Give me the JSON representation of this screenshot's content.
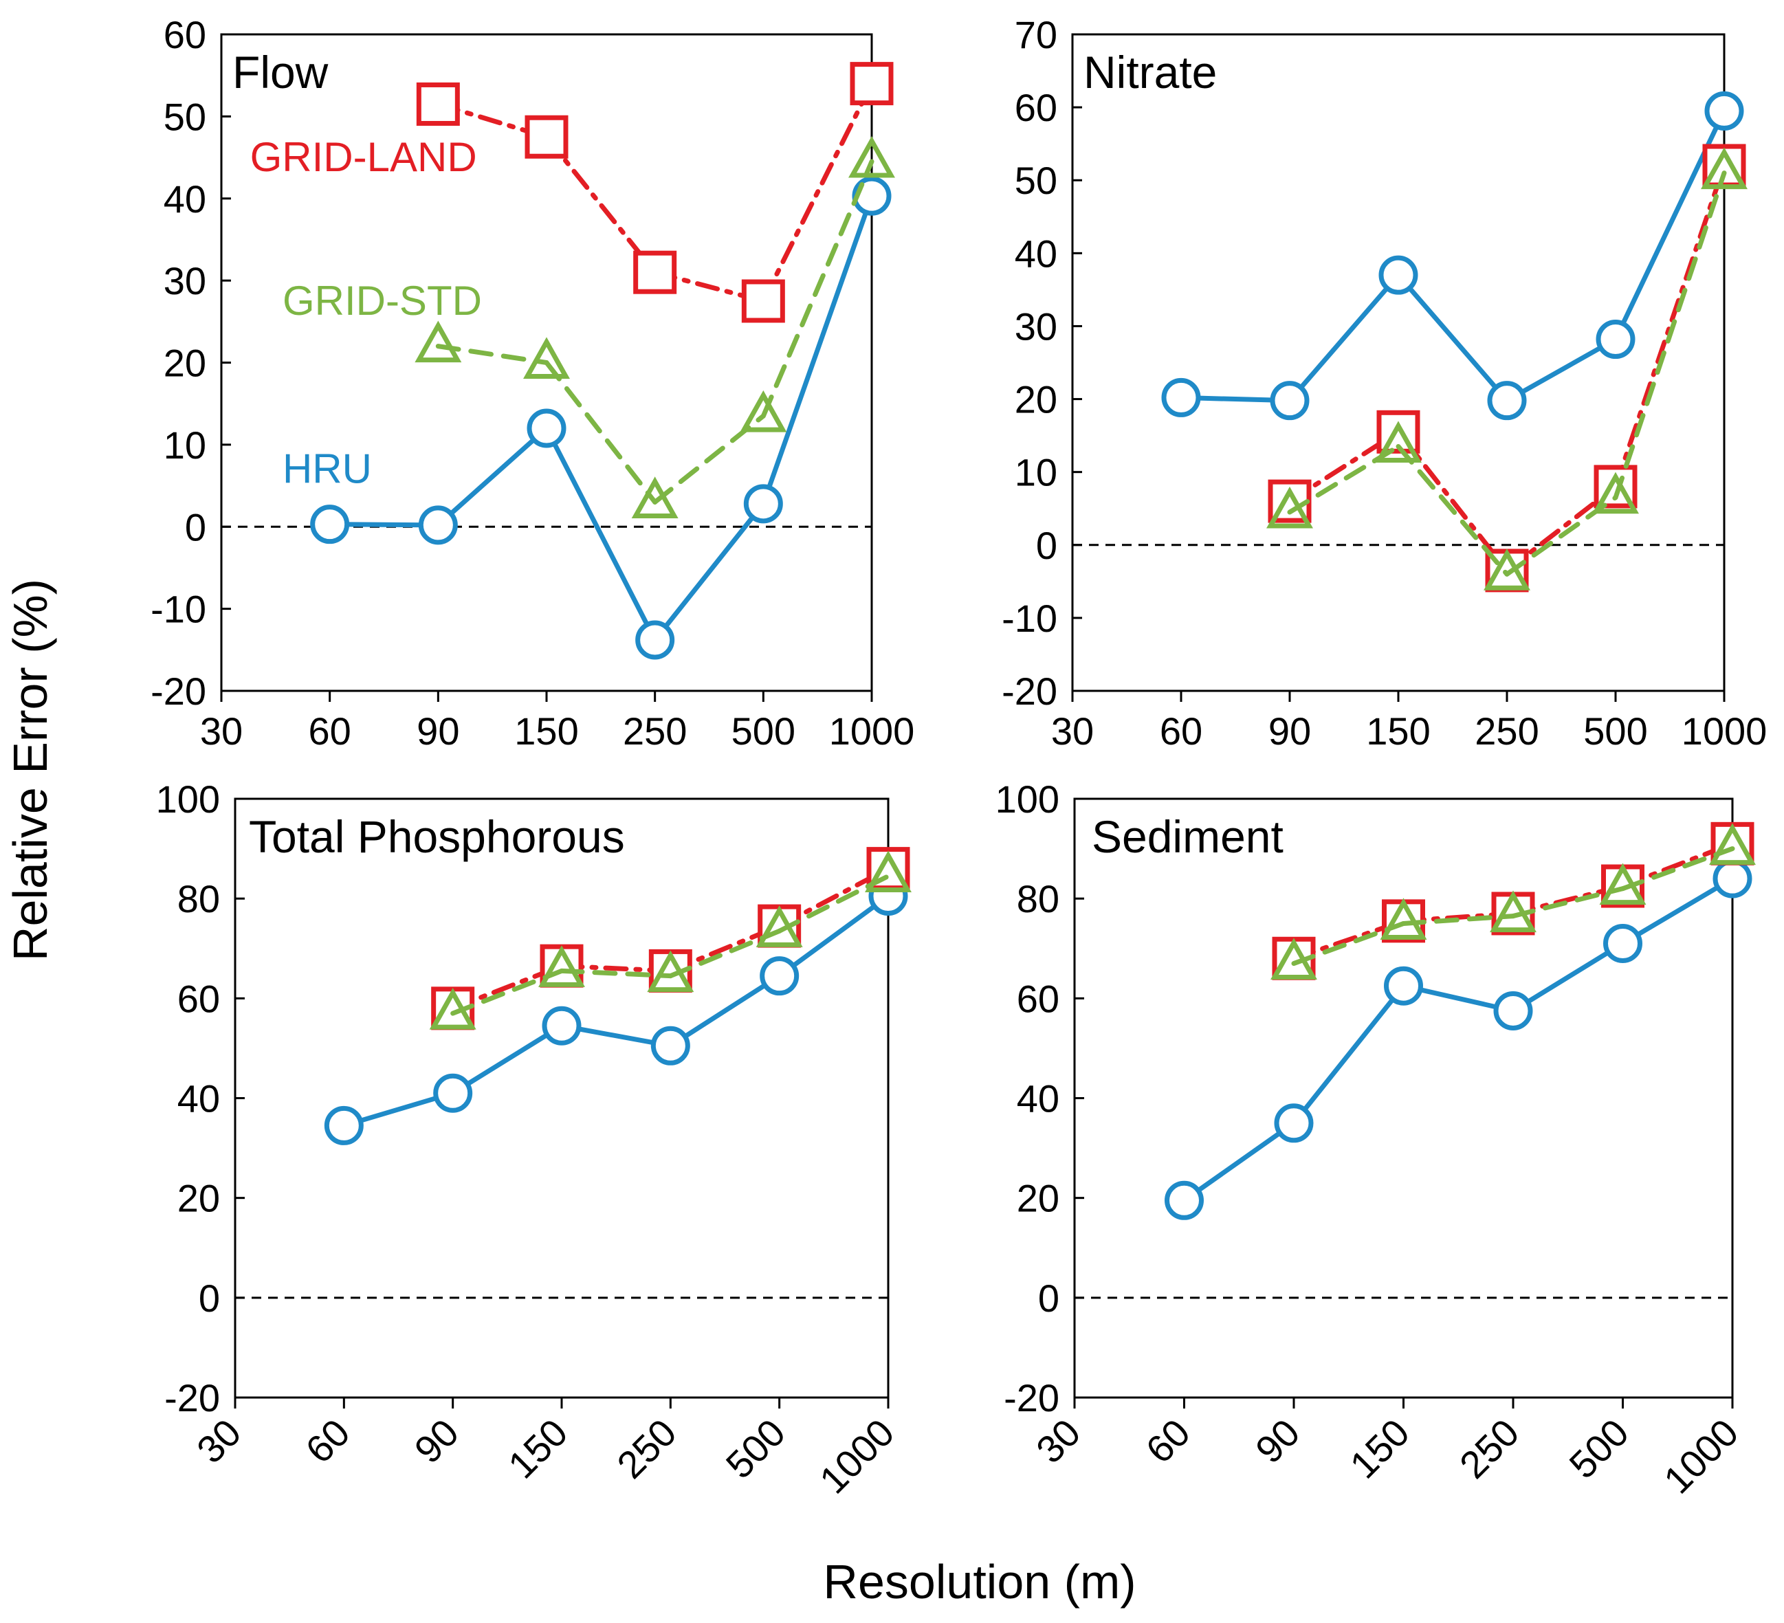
{
  "figure": {
    "ylabel": "Relative Error (%)",
    "xlabel": "Resolution (m)"
  },
  "series_styles": [
    {
      "name": "HRU",
      "color": "#1f8ac8",
      "marker": "circle",
      "line": "solid"
    },
    {
      "name": "GRID-LAND",
      "color": "#e31e24",
      "marker": "square",
      "line": "dashdot"
    },
    {
      "name": "GRID-STD",
      "color": "#7db544",
      "marker": "triangle",
      "line": "dash"
    }
  ],
  "chart_data": [
    {
      "type": "line",
      "title": "Flow",
      "categories": [
        "30",
        "60",
        "90",
        "150",
        "250",
        "500",
        "1000"
      ],
      "ylim": [
        -20,
        60
      ],
      "yticks": [
        -20,
        -10,
        0,
        10,
        20,
        30,
        40,
        50,
        60
      ],
      "series": [
        {
          "name": "HRU",
          "label": "HRU",
          "values": [
            null,
            0.3,
            0.2,
            12.0,
            -13.8,
            2.8,
            40.3
          ]
        },
        {
          "name": "GRID-LAND",
          "label": "GRID-LAND",
          "values": [
            null,
            null,
            51.5,
            47.5,
            31.0,
            27.5,
            54.0
          ]
        },
        {
          "name": "GRID-STD",
          "label": "GRID-STD",
          "values": [
            null,
            null,
            22.0,
            20.0,
            3.0,
            13.5,
            44.5
          ]
        }
      ]
    },
    {
      "type": "line",
      "title": "Nitrate",
      "categories": [
        "30",
        "60",
        "90",
        "150",
        "250",
        "500",
        "1000"
      ],
      "ylim": [
        -20,
        70
      ],
      "yticks": [
        -20,
        -10,
        0,
        10,
        20,
        30,
        40,
        50,
        60,
        70
      ],
      "series": [
        {
          "name": "HRU",
          "values": [
            null,
            20.2,
            19.8,
            37.0,
            19.8,
            28.2,
            59.5
          ]
        },
        {
          "name": "GRID-LAND",
          "values": [
            null,
            null,
            6.0,
            15.5,
            -3.5,
            8.0,
            52.0
          ]
        },
        {
          "name": "GRID-STD",
          "values": [
            null,
            null,
            4.5,
            13.5,
            -4.0,
            6.5,
            51.0
          ]
        }
      ]
    },
    {
      "type": "line",
      "title": "Total Phosphorous",
      "categories": [
        "30",
        "60",
        "90",
        "150",
        "250",
        "500",
        "1000"
      ],
      "ylim": [
        -20,
        100
      ],
      "yticks": [
        -20,
        0,
        20,
        40,
        60,
        80,
        100
      ],
      "series": [
        {
          "name": "HRU",
          "values": [
            null,
            34.5,
            41.0,
            54.5,
            50.5,
            64.5,
            80.5
          ]
        },
        {
          "name": "GRID-LAND",
          "values": [
            null,
            null,
            58.0,
            66.5,
            65.5,
            74.5,
            86.0
          ]
        },
        {
          "name": "GRID-STD",
          "values": [
            null,
            null,
            57.0,
            65.5,
            64.5,
            73.5,
            84.5
          ]
        }
      ]
    },
    {
      "type": "line",
      "title": "Sediment",
      "categories": [
        "30",
        "60",
        "90",
        "150",
        "250",
        "500",
        "1000"
      ],
      "ylim": [
        -20,
        100
      ],
      "yticks": [
        -20,
        0,
        20,
        40,
        60,
        80,
        100
      ],
      "series": [
        {
          "name": "HRU",
          "values": [
            null,
            19.5,
            35.0,
            62.5,
            57.5,
            71.0,
            84.0
          ]
        },
        {
          "name": "GRID-LAND",
          "values": [
            null,
            null,
            68.0,
            75.5,
            77.0,
            82.5,
            91.0
          ]
        },
        {
          "name": "GRID-STD",
          "values": [
            null,
            null,
            67.0,
            75.0,
            76.5,
            82.0,
            90.0
          ]
        }
      ]
    }
  ]
}
